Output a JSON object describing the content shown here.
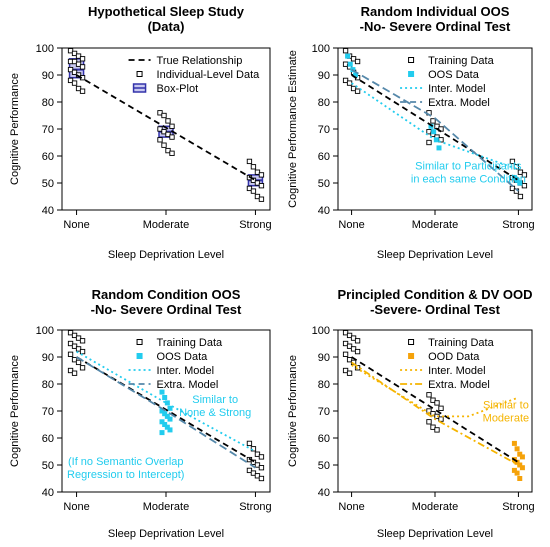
{
  "figure": {
    "background": "#ffffff"
  },
  "colors": {
    "training": "#000000",
    "true_line": "#000000",
    "box": "#3333aa",
    "box_fill": "#c8c8f0",
    "oos": "#22ccee",
    "inter_model": "#22ccee",
    "extra_model": "#5588aa",
    "ood": "#f5a20a",
    "ood_model": "#f5b400",
    "annotation_cyan": "#22ccee",
    "annotation_orange": "#f5b400"
  },
  "chart_data": [
    {
      "type": "scatter",
      "title_lines": [
        "Hypothetical Sleep Study",
        "(Data)"
      ],
      "xlabel": "Sleep Deprivation Level",
      "ylabel": "Cognitive Performance",
      "categories": [
        "None",
        "Moderate",
        "Strong"
      ],
      "ylim": [
        40,
        100
      ],
      "yticks": [
        40,
        50,
        60,
        70,
        80,
        90,
        100
      ],
      "legend_position": "top-right",
      "legend": [
        {
          "label": "True Relationship",
          "style": "dashed-line",
          "color": "#000000"
        },
        {
          "label": "Individual-Level Data",
          "style": "open-square",
          "color": "#000000"
        },
        {
          "label": "Box-Plot",
          "style": "box",
          "color": "#3333aa"
        }
      ],
      "training": [
        [
          1,
          [
            99,
            98,
            97,
            96,
            95,
            95,
            94,
            93,
            92,
            91,
            90,
            89,
            88,
            87,
            85,
            84
          ]
        ],
        [
          2,
          [
            76,
            75,
            73,
            71,
            70,
            69,
            68,
            67,
            66,
            64,
            62,
            61
          ]
        ],
        [
          3,
          [
            58,
            56,
            54,
            53,
            52,
            51,
            50,
            49,
            48,
            47,
            45,
            44
          ]
        ]
      ],
      "true_line": [
        [
          1,
          90
        ],
        [
          3,
          51
        ]
      ],
      "boxes": [
        {
          "x": 1,
          "q1": 89,
          "median": 92,
          "q3": 96
        },
        {
          "x": 2,
          "q1": 67,
          "median": 69,
          "q3": 71
        },
        {
          "x": 3,
          "q1": 49,
          "median": 51,
          "q3": 53
        }
      ],
      "annotations": []
    },
    {
      "type": "scatter",
      "title_lines": [
        "Random Individual OOS",
        "-No- Severe Ordinal Test"
      ],
      "xlabel": "Sleep Deprivation Level",
      "ylabel": "Cognitive Performance Estimate",
      "categories": [
        "None",
        "Moderate",
        "Strong"
      ],
      "ylim": [
        40,
        100
      ],
      "yticks": [
        40,
        50,
        60,
        70,
        80,
        90,
        100
      ],
      "legend_position": "top-right",
      "legend": [
        {
          "label": "Training Data",
          "style": "open-square",
          "color": "#000000"
        },
        {
          "label": "OOS Data",
          "style": "filled-square",
          "color": "#22ccee"
        },
        {
          "label": "Inter. Model",
          "style": "dotted-line",
          "color": "#22ccee"
        },
        {
          "label": "Extra. Model",
          "style": "dashed-line",
          "color": "#5588aa"
        }
      ],
      "training": [
        [
          1,
          [
            99,
            97,
            96,
            95,
            94,
            93,
            91,
            89,
            88,
            87,
            85,
            84
          ]
        ],
        [
          2,
          [
            76,
            73,
            71,
            70,
            69,
            68,
            67,
            66,
            65
          ]
        ],
        [
          3,
          [
            58,
            56,
            54,
            53,
            52,
            51,
            50,
            49,
            48,
            47,
            45
          ]
        ]
      ],
      "oos": [
        [
          1,
          [
            97,
            94,
            92,
            90
          ]
        ],
        [
          2,
          [
            71,
            69,
            66,
            63
          ]
        ],
        [
          3,
          [
            52,
            51,
            50
          ]
        ]
      ],
      "true_line": [
        [
          1,
          90
        ],
        [
          3,
          51
        ]
      ],
      "inter_model": [
        [
          1,
          87
        ],
        [
          2,
          66
        ],
        [
          3,
          55
        ]
      ],
      "extra_model": [
        [
          1,
          92
        ],
        [
          2,
          74
        ],
        [
          3,
          47
        ]
      ],
      "annotations": [
        {
          "lines": [
            "Similar to Participants",
            "in each same Condition"
          ],
          "x": 2.4,
          "y": 55,
          "color": "#22ccee"
        }
      ]
    },
    {
      "type": "scatter",
      "title_lines": [
        "Random Condition OOS",
        "-No- Severe Ordinal Test"
      ],
      "xlabel": "Sleep Deprivation Level",
      "ylabel": "Cognitive Performance",
      "categories": [
        "None",
        "Moderate",
        "Strong"
      ],
      "ylim": [
        40,
        100
      ],
      "yticks": [
        40,
        50,
        60,
        70,
        80,
        90,
        100
      ],
      "legend_position": "top-right",
      "legend": [
        {
          "label": "Training Data",
          "style": "open-square",
          "color": "#000000"
        },
        {
          "label": "OOS Data",
          "style": "filled-square",
          "color": "#22ccee"
        },
        {
          "label": "Inter. Model",
          "style": "dotted-line",
          "color": "#22ccee"
        },
        {
          "label": "Extra. Model",
          "style": "dashed-line",
          "color": "#5588aa"
        }
      ],
      "training": [
        [
          1,
          [
            99,
            98,
            97,
            96,
            95,
            94,
            93,
            92,
            91,
            89,
            88,
            86,
            85,
            84
          ]
        ],
        [
          3,
          [
            58,
            56,
            54,
            53,
            52,
            51,
            50,
            49,
            48,
            47,
            46,
            45
          ]
        ]
      ],
      "oos": [
        [
          2,
          [
            77,
            75,
            73,
            71,
            70,
            69,
            68,
            67,
            66,
            65,
            64,
            63,
            62
          ]
        ]
      ],
      "true_line": [
        [
          1,
          90
        ],
        [
          3,
          51
        ]
      ],
      "inter_model": [
        [
          1,
          92
        ],
        [
          2,
          73
        ],
        [
          3,
          55
        ]
      ],
      "extra_model": [
        [
          1,
          90
        ],
        [
          2,
          70
        ],
        [
          3,
          49
        ]
      ],
      "annotations": [
        {
          "lines": [
            "Similar to",
            "None & Strong"
          ],
          "x": 2.55,
          "y": 73,
          "color": "#22ccee"
        },
        {
          "lines": [
            "(If no Semantic Overlap",
            "Regression to Intercept)"
          ],
          "x": 1.55,
          "y": 50,
          "color": "#22ccee"
        }
      ]
    },
    {
      "type": "scatter",
      "title_lines": [
        "Principled Condition & DV OOD",
        "-Severe- Ordinal Test"
      ],
      "xlabel": "Sleep Deprivation Level",
      "ylabel": "Cognitive Performance",
      "categories": [
        "None",
        "Moderate",
        "Strong"
      ],
      "ylim": [
        40,
        100
      ],
      "yticks": [
        40,
        50,
        60,
        70,
        80,
        90,
        100
      ],
      "legend_position": "top-right",
      "legend": [
        {
          "label": "Training Data",
          "style": "open-square",
          "color": "#000000"
        },
        {
          "label": "OOD Data",
          "style": "filled-square",
          "color": "#f5a20a"
        },
        {
          "label": "Inter. Model",
          "style": "dotted-line",
          "color": "#f5b400"
        },
        {
          "label": "Extra. Model",
          "style": "dashdot-line",
          "color": "#f5b400"
        }
      ],
      "training": [
        [
          1,
          [
            99,
            98,
            97,
            96,
            95,
            94,
            93,
            92,
            91,
            89,
            88,
            86,
            85,
            84
          ]
        ],
        [
          2,
          [
            76,
            74,
            73,
            71,
            70,
            69,
            68,
            67,
            66,
            64,
            63
          ]
        ]
      ],
      "oos": [
        [
          3,
          [
            58,
            56,
            54,
            53,
            52,
            51,
            50,
            49,
            48,
            47,
            45
          ]
        ]
      ],
      "true_line": [
        [
          1,
          90
        ],
        [
          3,
          51
        ]
      ],
      "inter_model": [
        [
          1,
          87
        ],
        [
          2,
          68
        ],
        [
          2.4,
          68
        ],
        [
          3,
          75
        ]
      ],
      "extra_model": [
        [
          1,
          88
        ],
        [
          2,
          67
        ],
        [
          3,
          50
        ]
      ],
      "annotations": [
        {
          "lines": [
            "Similar to",
            "Moderate"
          ],
          "x": 2.85,
          "y": 71,
          "color": "#f5b400"
        }
      ]
    }
  ]
}
